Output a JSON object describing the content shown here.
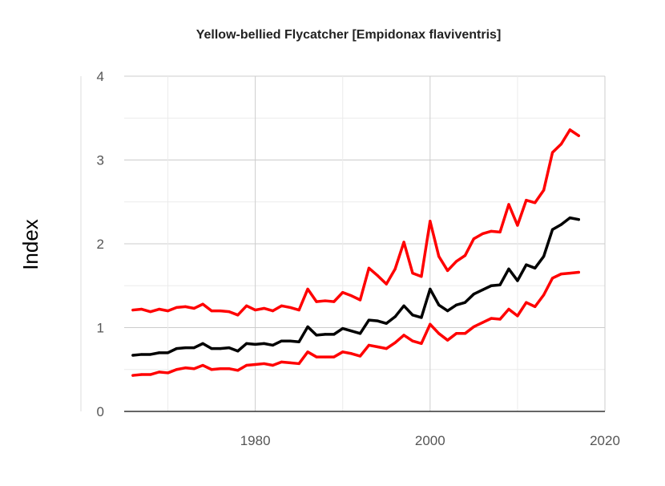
{
  "chart_data": {
    "type": "line",
    "title": "Yellow-bellied Flycatcher [Empidonax flaviventris]",
    "xlabel": "",
    "ylabel": "Index",
    "xlim": [
      1965,
      2020
    ],
    "ylim": [
      0,
      4
    ],
    "x_ticks": [
      1980,
      2000,
      2020
    ],
    "y_ticks": [
      0,
      1,
      2,
      3,
      4
    ],
    "grid": true,
    "x": [
      1966,
      1967,
      1968,
      1969,
      1970,
      1971,
      1972,
      1973,
      1974,
      1975,
      1976,
      1977,
      1978,
      1979,
      1980,
      1981,
      1982,
      1983,
      1984,
      1985,
      1986,
      1987,
      1988,
      1989,
      1990,
      1991,
      1992,
      1993,
      1994,
      1995,
      1996,
      1997,
      1998,
      1999,
      2000,
      2001,
      2002,
      2003,
      2004,
      2005,
      2006,
      2007,
      2008,
      2009,
      2010,
      2011,
      2012,
      2013,
      2014,
      2015,
      2016,
      2017
    ],
    "series": [
      {
        "color": "#ff0000",
        "values": [
          1.21,
          1.22,
          1.19,
          1.22,
          1.2,
          1.24,
          1.25,
          1.23,
          1.28,
          1.2,
          1.2,
          1.19,
          1.15,
          1.26,
          1.21,
          1.23,
          1.2,
          1.26,
          1.24,
          1.21,
          1.46,
          1.31,
          1.32,
          1.31,
          1.42,
          1.38,
          1.33,
          1.71,
          1.62,
          1.52,
          1.7,
          2.02,
          1.65,
          1.61,
          2.27,
          1.85,
          1.68,
          1.79,
          1.86,
          2.06,
          2.12,
          2.15,
          2.14,
          2.47,
          2.22,
          2.52,
          2.49,
          2.64,
          3.09,
          3.19,
          3.36,
          3.29
        ]
      },
      {
        "color": "#000000",
        "values": [
          0.67,
          0.68,
          0.68,
          0.7,
          0.7,
          0.75,
          0.76,
          0.76,
          0.81,
          0.75,
          0.75,
          0.76,
          0.72,
          0.81,
          0.8,
          0.81,
          0.79,
          0.84,
          0.84,
          0.83,
          1.01,
          0.91,
          0.92,
          0.92,
          0.99,
          0.96,
          0.93,
          1.09,
          1.08,
          1.05,
          1.13,
          1.26,
          1.15,
          1.12,
          1.46,
          1.27,
          1.2,
          1.27,
          1.3,
          1.4,
          1.45,
          1.5,
          1.51,
          1.7,
          1.56,
          1.75,
          1.71,
          1.85,
          2.17,
          2.23,
          2.31,
          2.29
        ]
      },
      {
        "color": "#ff0000",
        "values": [
          0.43,
          0.44,
          0.44,
          0.47,
          0.46,
          0.5,
          0.52,
          0.51,
          0.55,
          0.5,
          0.51,
          0.51,
          0.49,
          0.55,
          0.56,
          0.57,
          0.55,
          0.59,
          0.58,
          0.57,
          0.71,
          0.65,
          0.65,
          0.65,
          0.71,
          0.69,
          0.66,
          0.79,
          0.77,
          0.75,
          0.82,
          0.91,
          0.84,
          0.81,
          1.04,
          0.93,
          0.85,
          0.93,
          0.93,
          1.01,
          1.06,
          1.11,
          1.1,
          1.22,
          1.14,
          1.3,
          1.25,
          1.39,
          1.59,
          1.64,
          1.65,
          1.66
        ]
      }
    ]
  }
}
